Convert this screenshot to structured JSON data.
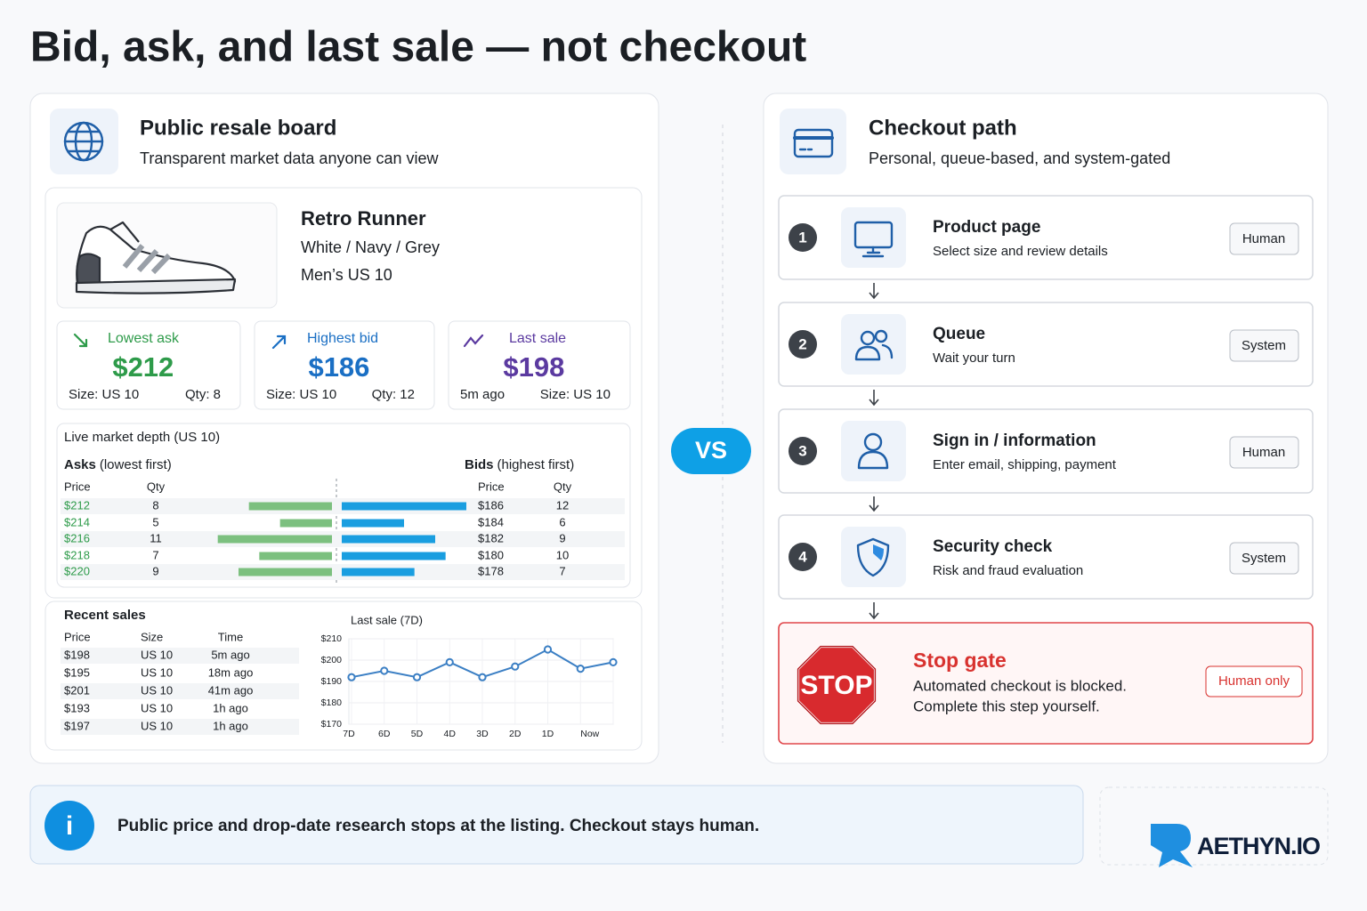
{
  "title": "Bid, ask, and last sale — not checkout",
  "board": {
    "title": "Public resale board",
    "subtitle": "Transparent market data anyone can view"
  },
  "product": {
    "name": "Retro Runner",
    "colorway": "White / Navy / Grey",
    "size": "Men’s US 10"
  },
  "stats": [
    {
      "label": "Lowest ask",
      "value": "$212",
      "left": "Size: US 10",
      "right": "Qty: 8"
    },
    {
      "label": "Highest bid",
      "value": "$186",
      "left": "Size: US 10",
      "right": "Qty: 12"
    },
    {
      "label": "Last sale",
      "value": "$198",
      "left": "5m ago",
      "right": "Size: US 10"
    }
  ],
  "depth": {
    "title": "Live market depth (US 10)",
    "asks_label": "Asks",
    "asks_note": "(lowest first)",
    "bids_label": "Bids",
    "bids_note": "(highest first)",
    "price_header": "Price",
    "qty_header": "Qty",
    "asks": [
      {
        "price": "$212",
        "qty": 8
      },
      {
        "price": "$214",
        "qty": 5
      },
      {
        "price": "$216",
        "qty": 11
      },
      {
        "price": "$218",
        "qty": 7
      },
      {
        "price": "$220",
        "qty": 9
      }
    ],
    "bids": [
      {
        "price": "$186",
        "qty": 12
      },
      {
        "price": "$184",
        "qty": 6
      },
      {
        "price": "$182",
        "qty": 9
      },
      {
        "price": "$180",
        "qty": 10
      },
      {
        "price": "$178",
        "qty": 7
      }
    ]
  },
  "recent": {
    "title": "Recent sales",
    "headers": [
      "Price",
      "Size",
      "Time"
    ],
    "rows": [
      [
        "$198",
        "US 10",
        "5m ago"
      ],
      [
        "$195",
        "US 10",
        "18m ago"
      ],
      [
        "$201",
        "US 10",
        "41m ago"
      ],
      [
        "$193",
        "US 10",
        "1h ago"
      ],
      [
        "$197",
        "US 10",
        "1h ago"
      ]
    ]
  },
  "chart_data": {
    "type": "line",
    "title": "Last sale (7D)",
    "categories": [
      "7D",
      "6D",
      "5D",
      "4D",
      "3D",
      "2D",
      "1D",
      "Now",
      null
    ],
    "values": [
      192,
      195,
      192,
      199,
      192,
      197,
      205,
      196,
      199
    ],
    "color": "#3b7fc4",
    "ylim": [
      170,
      210
    ],
    "yticks": [
      {
        "value": 170,
        "label": "$170"
      },
      {
        "value": 180,
        "label": "$180"
      },
      {
        "value": 190,
        "label": "$190"
      },
      {
        "value": 200,
        "label": "$200"
      },
      {
        "value": 210,
        "label": "$210"
      }
    ],
    "grid": true
  },
  "vs": "VS",
  "checkout": {
    "title": "Checkout path",
    "subtitle": "Personal, queue-based, and system-gated"
  },
  "steps": [
    {
      "number": "1",
      "title": "Product page",
      "description": "Select size and review details",
      "badge": "Human"
    },
    {
      "number": "2",
      "title": "Queue",
      "description": "Wait your turn",
      "badge": "System"
    },
    {
      "number": "3",
      "title": "Sign in / information",
      "description": "Enter email, shipping, payment",
      "badge": "Human"
    },
    {
      "number": "4",
      "title": "Security check",
      "description": "Risk and fraud evaluation",
      "badge": "System"
    }
  ],
  "stop": {
    "sign": "STOP",
    "title": "Stop gate",
    "lines": [
      "Automated checkout is blocked.",
      "Complete this step yourself."
    ],
    "badge": "Human only"
  },
  "footer": {
    "icon": "i",
    "text": "Public price and drop-date research stops at the listing. Checkout stays human."
  },
  "logo": "AETHYN.IO"
}
